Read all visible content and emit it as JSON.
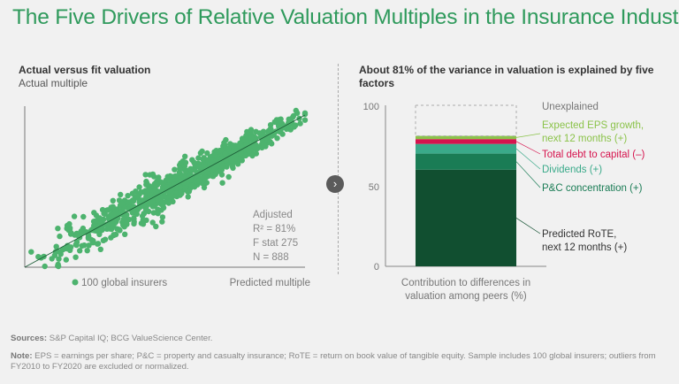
{
  "title": "The Five Drivers of Relative Valuation Multiples in the Insurance Industry",
  "colors": {
    "title": "#2f9a5c",
    "dots": "#4db36e",
    "fit_line": "#1d5e38"
  },
  "chart_data": [
    {
      "type": "scatter",
      "title": "Actual versus fit valuation",
      "ylabel": "Actual multiple",
      "xlabel": "Predicted multiple",
      "legend": "100 global insurers",
      "legend_placement": "bottom",
      "trendline": true,
      "stats": [
        "Adjusted",
        "R² = 81%",
        "F stat 275",
        "N = 888"
      ],
      "n_points": 888,
      "r_squared": 0.81
    },
    {
      "type": "bar",
      "stacked": true,
      "title": "About 81% of the variance in valuation is explained by five factors",
      "xlabel": "Contribution to differences in valuation among peers (%)",
      "ylim": [
        0,
        100
      ],
      "yticks": [
        "0",
        "50",
        "100"
      ],
      "series": [
        {
          "name": "Predicted RoTE, next 12 months (+)",
          "value": 60,
          "color": "#114f30",
          "label_color": "#333333"
        },
        {
          "name": "P&C concentration (+)",
          "value": 10,
          "color": "#1a7c55",
          "label_color": "#1a7c55"
        },
        {
          "name": "Dividends (+)",
          "value": 6,
          "color": "#3aaa8a",
          "label_color": "#3aaa8a"
        },
        {
          "name": "Total debt to capital (–)",
          "value": 3,
          "color": "#d6144e",
          "label_color": "#d6144e"
        },
        {
          "name": "Expected EPS growth, next 12 months (+)",
          "value": 2,
          "color": "#8bc34a",
          "label_color": "#8bc34a"
        },
        {
          "name": "Unexplained",
          "value": 19,
          "color": "none",
          "label_color": "#777777"
        }
      ]
    }
  ],
  "footer": {
    "sources_label": "Sources:",
    "sources": " S&P Capital IQ; BCG ValueScience Center.",
    "note_label": "Note:",
    "note": " EPS = earnings per share; P&C = property and casualty insurance; RoTE = return on book value of tangible equity. Sample includes 100 global insurers; outliers from FY2010 to FY2020 are excluded or normalized."
  }
}
